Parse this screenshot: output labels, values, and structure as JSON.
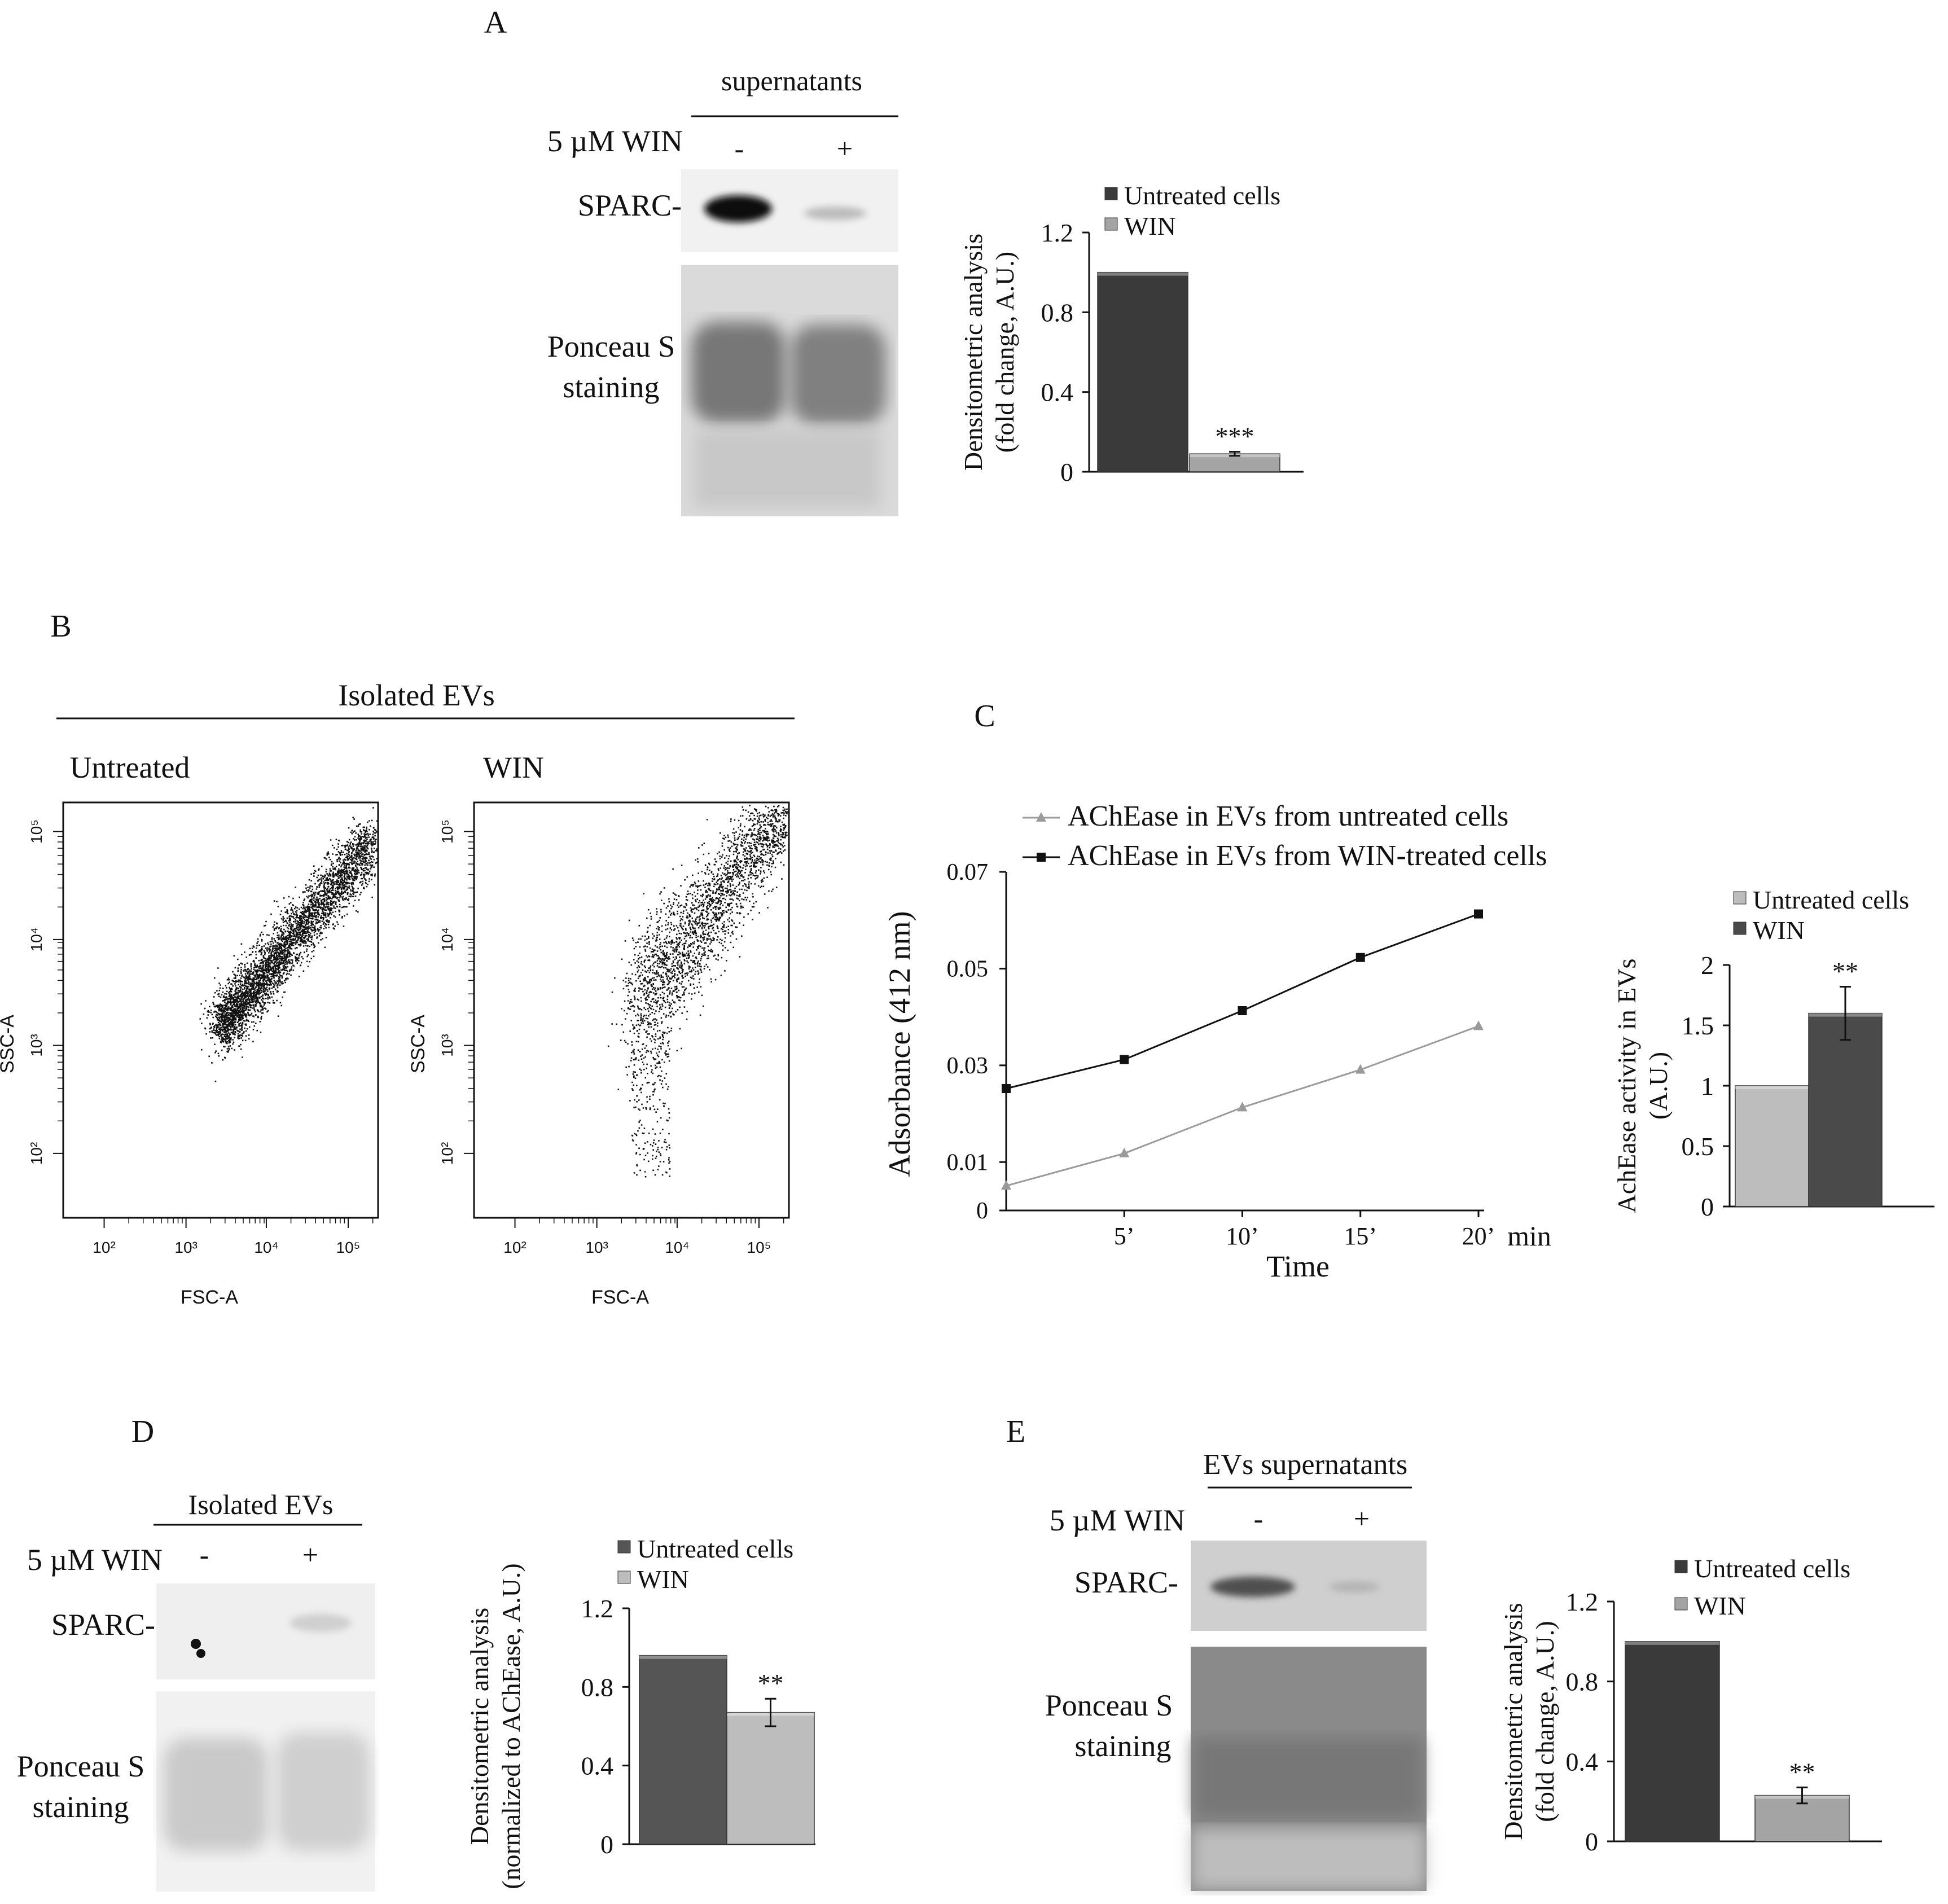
{
  "panels": {
    "A": {
      "label": "A",
      "header": "supernatants",
      "treatment_label": "5 µM WIN",
      "lanes": [
        "-",
        "+"
      ],
      "band_label": "SPARC-",
      "stain_label_1": "Ponceau S",
      "stain_label_2": "staining"
    },
    "B": {
      "label": "B",
      "header": "Isolated EVs",
      "plots": [
        {
          "title": "Untreated",
          "xlabel": "FSC-A",
          "ylabel": "SSC-A"
        },
        {
          "title": "WIN",
          "xlabel": "FSC-A",
          "ylabel": "SSC-A"
        }
      ],
      "x_ticks": [
        "10²",
        "10³",
        "10⁴",
        "10⁵"
      ],
      "y_ticks": [
        "10²",
        "10³",
        "10⁴",
        "10⁵"
      ]
    },
    "C": {
      "label": "C"
    },
    "D": {
      "label": "D",
      "header": "Isolated EVs",
      "treatment_label": "5 µM WIN",
      "lanes": [
        "-",
        "+"
      ],
      "band_label": "SPARC-",
      "stain_label_1": "Ponceau S",
      "stain_label_2": "staining"
    },
    "E": {
      "label": "E",
      "header": "EVs supernatants",
      "treatment_label": "5 µM WIN",
      "lanes": [
        "-",
        "+"
      ],
      "band_label": "SPARC-",
      "stain_label_1": "Ponceau S",
      "stain_label_2": "staining"
    }
  },
  "chart_data": [
    {
      "id": "A",
      "type": "bar",
      "ylabel": [
        "Densitometric analysis",
        "(fold change, A.U.)"
      ],
      "legend": [
        "Untreated cells",
        "WIN"
      ],
      "categories": [
        "Untreated cells",
        "WIN"
      ],
      "values": [
        1.0,
        0.09
      ],
      "errors": [
        0,
        0.01
      ],
      "significance": [
        "",
        "***"
      ],
      "yticks": [
        "0",
        "0.4",
        "0.8",
        "1.2"
      ],
      "ylim": [
        0,
        1.2
      ],
      "colors": [
        "#3a3a3a",
        "#a4a4a4"
      ]
    },
    {
      "id": "C-line",
      "type": "line",
      "ylabel": "Adsorbance (412 nm)",
      "xlabel": "Time",
      "x_unit": "min",
      "x": [
        0,
        5,
        10,
        15,
        20
      ],
      "xticks": [
        "5’",
        "10’",
        "15’",
        "20’"
      ],
      "yticks": [
        "0",
        "0.01",
        "0.03",
        "0.05",
        "0.07"
      ],
      "ylim": [
        0,
        0.07
      ],
      "series": [
        {
          "name": "AChEase in EVs from untreated cells",
          "values": [
            0.0051,
            0.0118,
            0.0213,
            0.0291,
            0.0381
          ],
          "color": "#9a9a9a",
          "marker": "triangle"
        },
        {
          "name": "AChEase in EVs from WIN-treated cells",
          "values": [
            0.0252,
            0.0312,
            0.0413,
            0.0523,
            0.0613
          ],
          "color": "#111111",
          "marker": "square"
        }
      ]
    },
    {
      "id": "C-bar",
      "type": "bar",
      "ylabel": [
        "AchEase activity in EVs",
        "(A.U.)"
      ],
      "legend": [
        "Untreated cells",
        "WIN"
      ],
      "categories": [
        "Untreated cells",
        "WIN"
      ],
      "values": [
        1.0,
        1.6
      ],
      "errors": [
        0,
        0.22
      ],
      "significance": [
        "",
        "**"
      ],
      "yticks": [
        "0",
        "0.5",
        "1",
        "1.5",
        "2"
      ],
      "ylim": [
        0,
        2
      ],
      "colors": [
        "#bdbdbd",
        "#4a4a4a"
      ]
    },
    {
      "id": "D",
      "type": "bar",
      "ylabel": [
        "Densitometric analysis",
        "(normalized to AChEase, A.U.)"
      ],
      "legend": [
        "Untreated cells",
        "WIN"
      ],
      "categories": [
        "Untreated cells",
        "WIN"
      ],
      "values": [
        0.96,
        0.67
      ],
      "errors": [
        0,
        0.07
      ],
      "significance": [
        "",
        "**"
      ],
      "yticks": [
        "0",
        "0.4",
        "0.8",
        "1.2"
      ],
      "ylim": [
        0,
        1.2
      ],
      "colors": [
        "#555555",
        "#bdbdbd"
      ]
    },
    {
      "id": "E",
      "type": "bar",
      "ylabel": [
        "Densitometric analysis",
        "(fold change, A.U.)"
      ],
      "legend": [
        "Untreated cells",
        "WIN"
      ],
      "categories": [
        "Untreated cells",
        "WIN"
      ],
      "values": [
        1.0,
        0.23
      ],
      "errors": [
        0,
        0.04
      ],
      "significance": [
        "",
        "**"
      ],
      "yticks": [
        "0",
        "0.4",
        "0.8",
        "1.2"
      ],
      "ylim": [
        0,
        1.2
      ],
      "colors": [
        "#3a3a3a",
        "#a4a4a4"
      ]
    }
  ]
}
